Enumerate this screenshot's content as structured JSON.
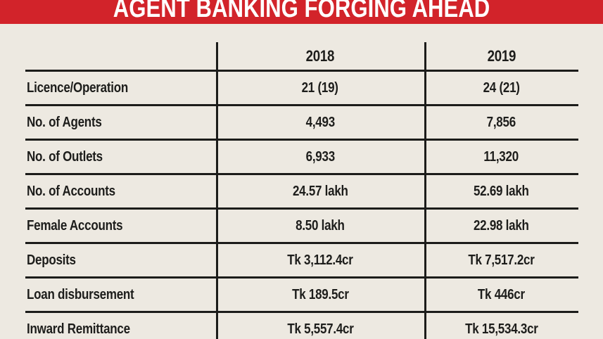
{
  "title": "AGENT BANKING FORGING AHEAD",
  "colors": {
    "banner_red": "#d2232a",
    "background": "#ede9e1",
    "text": "#1d1d1b",
    "line": "#1c1c1a",
    "title_text": "#ffffff"
  },
  "chart_data": {
    "type": "table",
    "title": "AGENT BANKING FORGING AHEAD",
    "columns": [
      "",
      "2018",
      "2019"
    ],
    "rows": [
      [
        "Licence/Operation",
        "21 (19)",
        "24 (21)"
      ],
      [
        "No. of Agents",
        "4,493",
        "7,856"
      ],
      [
        "No. of Outlets",
        "6,933",
        "11,320"
      ],
      [
        "No. of Accounts",
        "24.57 lakh",
        "52.69 lakh"
      ],
      [
        "Female Accounts",
        "8.50 lakh",
        "22.98 lakh"
      ],
      [
        "Deposits",
        "Tk 3,112.4cr",
        "Tk 7,517.2cr"
      ],
      [
        "Loan disbursement",
        "Tk 189.5cr",
        "Tk 446cr"
      ],
      [
        "Inward Remittance",
        "Tk 5,557.4cr",
        "Tk 15,534.3cr"
      ]
    ],
    "layout": {
      "grid": "horizontal and vertical rules only, no outer border",
      "value_alignment": "center",
      "label_alignment": "left"
    }
  }
}
